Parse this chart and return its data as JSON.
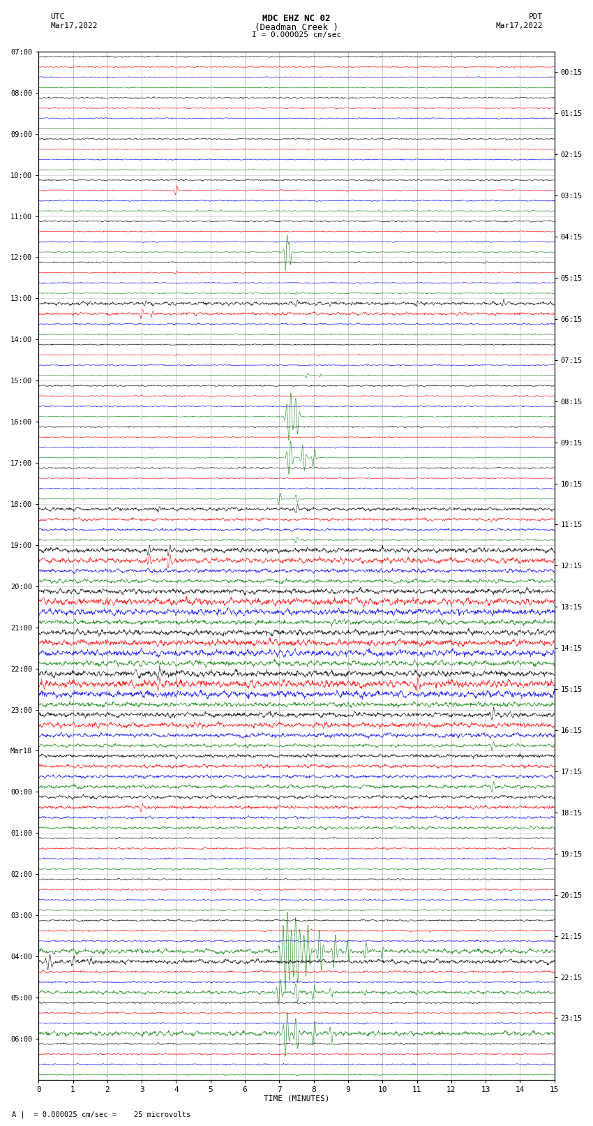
{
  "title_line1": "MDC EHZ NC 02",
  "title_line2": "(Deadman Creek )",
  "title_line3": "I = 0.000025 cm/sec",
  "utc_label": "UTC",
  "utc_date": "Mar17,2022",
  "pdt_label": "PDT",
  "pdt_date": "Mar17,2022",
  "xlabel": "TIME (MINUTES)",
  "footnote": "A |  = 0.000025 cm/sec =    25 microvolts",
  "left_times": [
    "07:00",
    "08:00",
    "09:00",
    "10:00",
    "11:00",
    "12:00",
    "13:00",
    "14:00",
    "15:00",
    "16:00",
    "17:00",
    "18:00",
    "19:00",
    "20:00",
    "21:00",
    "22:00",
    "23:00",
    "Mar18",
    "00:00",
    "01:00",
    "02:00",
    "03:00",
    "04:00",
    "05:00",
    "06:00"
  ],
  "right_times": [
    "00:15",
    "01:15",
    "02:15",
    "03:15",
    "04:15",
    "05:15",
    "06:15",
    "07:15",
    "08:15",
    "09:15",
    "10:15",
    "11:15",
    "12:15",
    "13:15",
    "14:15",
    "15:15",
    "16:15",
    "17:15",
    "18:15",
    "19:15",
    "20:15",
    "21:15",
    "22:15",
    "23:15"
  ],
  "bg_color": "#ffffff",
  "grid_color": "#999999",
  "colors_cycle": [
    "black",
    "red",
    "blue",
    "green"
  ],
  "num_rows": 25,
  "traces_per_row": 4,
  "xmin": 0,
  "xmax": 15,
  "seed": 12345
}
